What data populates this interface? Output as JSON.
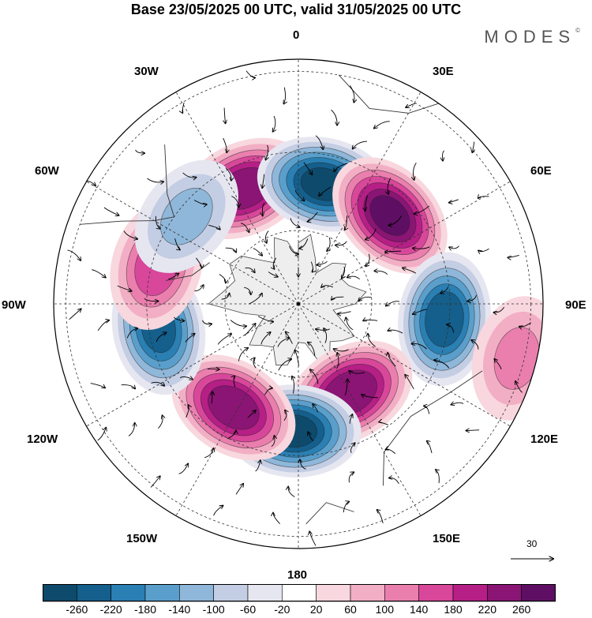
{
  "title": "Base 23/05/2025 00 UTC, valid 31/05/2025 00 UTC",
  "brand": {
    "name": "MODES",
    "mark": "©"
  },
  "longitude_labels": {
    "lon_0": "0",
    "lon_30e": "30E",
    "lon_60e": "60E",
    "lon_90e": "90E",
    "lon_120e": "120E",
    "lon_150e": "150E",
    "lon_180": "180",
    "lon_150w": "150W",
    "lon_120w": "120W",
    "lon_90w": "90W",
    "lon_60w": "60W",
    "lon_30w": "30W"
  },
  "vector_reference": {
    "value": "30"
  },
  "colors": {
    "ocean_land_bg": "#f4f4f4",
    "land_outline": "#333333",
    "grid_line": "#333333"
  },
  "colorbar": {
    "colors": [
      "#0d4a6b",
      "#145f8c",
      "#2a7fb3",
      "#5a9fcb",
      "#8fb7d9",
      "#c3cde3",
      "#e6e6f1",
      "#ffffff",
      "#f8d7de",
      "#f2aec4",
      "#ea7fae",
      "#d8479a",
      "#b51f86",
      "#8a1574",
      "#5e0f63"
    ],
    "tick_labels": [
      "-260",
      "-220",
      "-180",
      "-140",
      "-100",
      "-60",
      "-20",
      "20",
      "60",
      "100",
      "140",
      "180",
      "220",
      "260"
    ]
  },
  "anomalies": [
    {
      "name": "positive-center-30w",
      "lon": -25,
      "r": 0.52,
      "value": 240
    },
    {
      "name": "negative-center-15e",
      "lon": 12,
      "r": 0.5,
      "value": -260
    },
    {
      "name": "positive-center-45e",
      "lon": 46,
      "r": 0.52,
      "value": 260
    },
    {
      "name": "negative-center-95e",
      "lon": 96,
      "r": 0.6,
      "value": -240
    },
    {
      "name": "positive-center-100e",
      "lon": 104,
      "r": 0.92,
      "value": 100
    },
    {
      "name": "positive-center-150e",
      "lon": 150,
      "r": 0.42,
      "value": 250
    },
    {
      "name": "negative-center-180",
      "lon": 182,
      "r": 0.52,
      "value": -260
    },
    {
      "name": "positive-center-145w",
      "lon": -148,
      "r": 0.5,
      "value": 240
    },
    {
      "name": "negative-center-100w",
      "lon": -100,
      "r": 0.58,
      "value": -220
    },
    {
      "name": "positive-center-75w",
      "lon": -75,
      "r": 0.6,
      "value": 150
    },
    {
      "name": "negative-center-50w",
      "lon": -52,
      "r": 0.58,
      "value": -100
    }
  ]
}
